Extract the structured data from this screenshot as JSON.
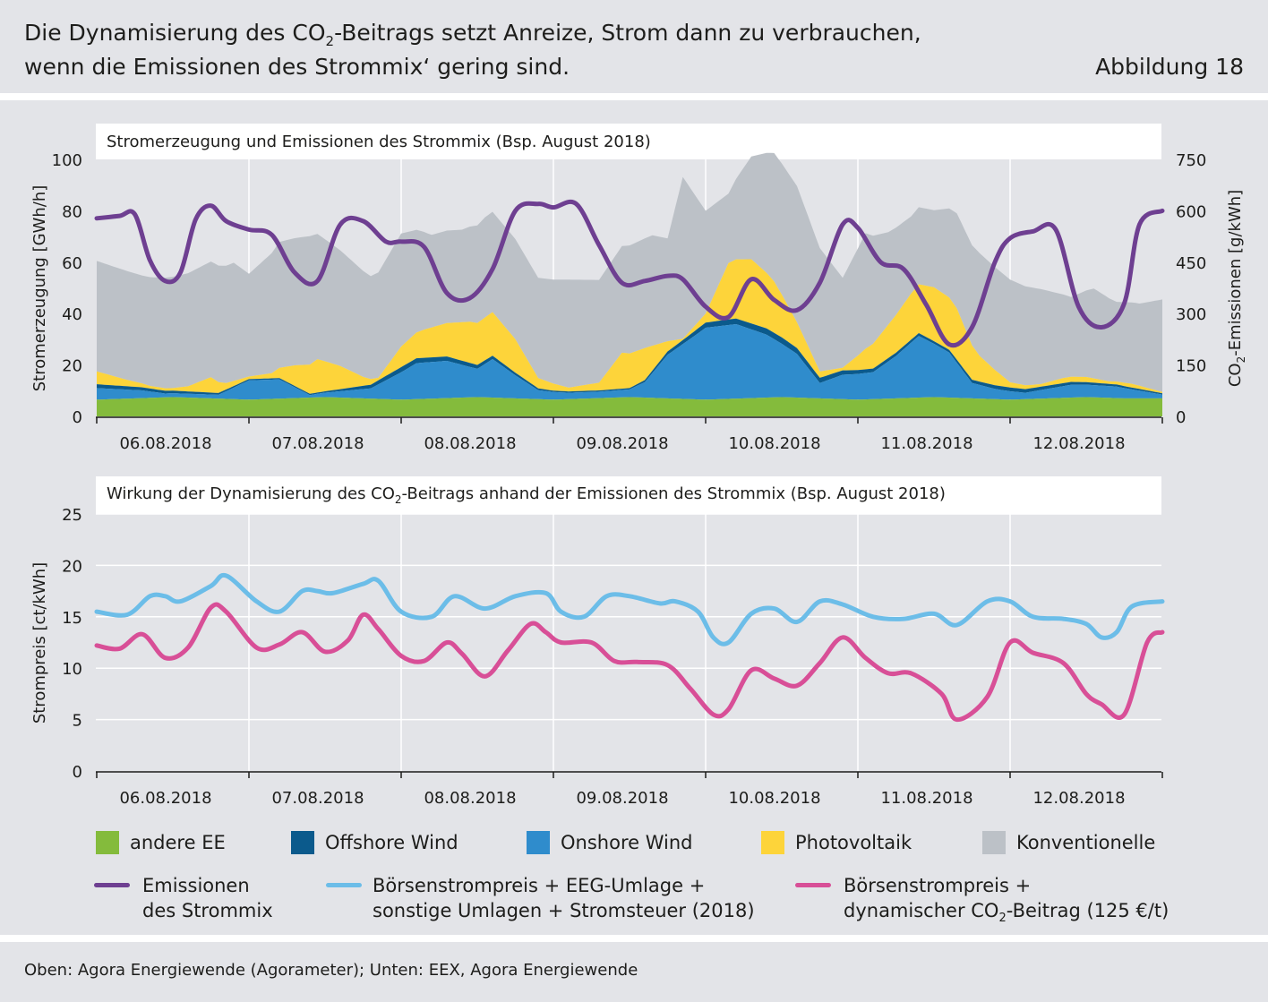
{
  "header": {
    "title_line1_a": "Die Dynamisierung des CO",
    "title_line1_sub": "2",
    "title_line1_b": "-Beitrags setzt Anreize, Strom dann zu verbrauchen,",
    "title_line2": "wenn die Emissionen des Strommix‘ gering sind.",
    "figure_label": "Abbildung 18"
  },
  "source": "Oben: Agora Energiewende (Agorameter); Unten: EEX, Agora Energiewende",
  "colors": {
    "andere_ee": "#84bb3c",
    "offshore": "#0b5a8c",
    "onshore": "#2f8ccc",
    "pv": "#fdd43a",
    "konv": "#bcc1c7",
    "emissions": "#6e3f91",
    "price_total": "#6cbde8",
    "price_dyn": "#d84f97"
  },
  "legend": {
    "andere_ee": "andere EE",
    "offshore": "Offshore Wind",
    "onshore": "Onshore Wind",
    "pv": "Photovoltaik",
    "konv": "Konventionelle",
    "emissions_1": "Emissionen",
    "emissions_2": "des Strommix",
    "price_total_1": "Börsenstrompreis + EEG-Umlage +",
    "price_total_2": "sonstige Umlagen + Stromsteuer (2018)",
    "price_dyn_1": "Börsenstrompreis +",
    "price_dyn_2a": "dynamischer CO",
    "price_dyn_2sub": "2",
    "price_dyn_2b": "-Beitrag (125 €/t)"
  },
  "chart_data": [
    {
      "type": "area",
      "title": "Stromerzeugung und Emissionen des Strommix (Bsp. August 2018)",
      "ylabel": "Stromerzeugung [GWh/h]",
      "y2label_a": "CO",
      "y2label_sub": "2",
      "y2label_b": "-Emissionen [g/kWh]",
      "ylim": [
        0,
        100
      ],
      "y2lim": [
        0,
        750
      ],
      "yticks": [
        0,
        20,
        40,
        60,
        80,
        100
      ],
      "y2ticks": [
        0,
        150,
        300,
        450,
        600,
        750
      ],
      "x_ticks": [
        "06.08.2018",
        "07.08.2018",
        "08.08.2018",
        "09.08.2018",
        "10.08.2018",
        "11.08.2018",
        "12.08.2018"
      ],
      "x_day_range": [
        0,
        7
      ],
      "stack_series": [
        {
          "name": "andere EE",
          "x": [
            0,
            0.25,
            0.5,
            0.75,
            1,
            1.25,
            1.5,
            1.75,
            2,
            2.25,
            2.5,
            2.75,
            3,
            3.25,
            3.5,
            3.75,
            4,
            4.25,
            4.5,
            4.75,
            5,
            5.25,
            5.5,
            5.75,
            6,
            6.25,
            6.5,
            6.75,
            7
          ],
          "values": [
            6.5,
            7,
            7.5,
            7,
            6.5,
            7,
            7.5,
            7,
            6.5,
            7,
            7.5,
            7,
            6.5,
            7,
            7.5,
            7,
            6.5,
            7,
            7.5,
            7,
            6.5,
            7,
            7.5,
            7,
            6.5,
            7,
            7.5,
            7,
            7
          ]
        },
        {
          "name": "Onshore Wind",
          "x": [
            0,
            0.3,
            0.45,
            0.6,
            0.8,
            1.0,
            1.2,
            1.4,
            1.6,
            1.8,
            2.1,
            2.3,
            2.5,
            2.6,
            2.75,
            2.9,
            3.1,
            3.3,
            3.5,
            3.6,
            3.75,
            3.9,
            4.0,
            4.2,
            4.4,
            4.6,
            4.75,
            4.9,
            5.1,
            5.25,
            5.4,
            5.6,
            5.75,
            5.9,
            6.1,
            6.4,
            6.7,
            7.0
          ],
          "values": [
            4.5,
            3.0,
            1.5,
            1.5,
            1.5,
            7.5,
            7.5,
            1.0,
            2.5,
            4.0,
            14.0,
            14.5,
            11.0,
            15.0,
            9.0,
            3.5,
            2.5,
            2.5,
            3.0,
            6.0,
            17.0,
            23.5,
            28.0,
            29.0,
            24.5,
            17.0,
            6.0,
            9.5,
            10.5,
            16.5,
            24.0,
            17.5,
            6.0,
            4.0,
            2.5,
            5.0,
            4.5,
            1.5
          ]
        },
        {
          "name": "Offshore Wind",
          "x": [
            0,
            0.5,
            1.0,
            1.5,
            2.0,
            2.5,
            3.0,
            3.5,
            4.0,
            4.5,
            5.0,
            5.5,
            6.0,
            6.5,
            7.0
          ],
          "values": [
            1.5,
            1.0,
            0.5,
            0.5,
            2.0,
            1.5,
            0.5,
            0.5,
            2.0,
            2.5,
            1.5,
            1.0,
            1.5,
            1.0,
            0.5
          ]
        },
        {
          "name": "Photovoltaik",
          "x": [
            0,
            0.2,
            0.35,
            0.5,
            0.6,
            0.75,
            0.85,
            1.0,
            1.15,
            1.3,
            1.45,
            1.6,
            1.75,
            1.85,
            2.0,
            2.15,
            2.3,
            2.45,
            2.6,
            2.75,
            2.9,
            3.1,
            3.3,
            3.45,
            3.6,
            3.75,
            3.85,
            4.0,
            4.15,
            4.3,
            4.45,
            4.6,
            4.75,
            4.9,
            5.05,
            5.2,
            5.35,
            5.5,
            5.65,
            5.8,
            6.0,
            6.2,
            6.35,
            6.5,
            6.65,
            6.8,
            7.0
          ],
          "values": [
            5.0,
            2.5,
            1.0,
            1.0,
            2.0,
            6.0,
            2.5,
            1.0,
            2.0,
            8.0,
            13.0,
            9.0,
            3.5,
            1.0,
            8.0,
            11.0,
            13.0,
            16.0,
            17.0,
            13.0,
            4.0,
            1.5,
            3.0,
            14.0,
            12.5,
            4.0,
            0.5,
            3.5,
            22.0,
            25.0,
            20.0,
            10.0,
            2.5,
            1.0,
            8.0,
            13.0,
            18.0,
            21.0,
            20.0,
            10.0,
            2.0,
            1.0,
            2.0,
            2.0,
            1.0,
            1.5,
            0.5
          ]
        },
        {
          "name": "Konventionelle",
          "x": [
            0,
            0.3,
            0.6,
            0.9,
            1.0,
            1.2,
            1.4,
            1.6,
            1.8,
            2.0,
            2.2,
            2.4,
            2.55,
            2.75,
            2.9,
            3.1,
            3.3,
            3.5,
            3.65,
            3.75,
            3.85,
            4.0,
            4.15,
            4.3,
            4.45,
            4.6,
            4.75,
            4.9,
            5.05,
            5.2,
            5.35,
            5.5,
            5.65,
            5.8,
            6.0,
            6.2,
            6.4,
            6.55,
            6.7,
            6.85,
            7.0
          ],
          "values": [
            43.0,
            42.0,
            44.0,
            46.0,
            40.0,
            49.0,
            50.0,
            45.0,
            40.0,
            44.0,
            36.0,
            36.0,
            39.0,
            39.0,
            39.0,
            42.0,
            40.0,
            42.0,
            43.0,
            40.0,
            63.0,
            40.0,
            27.0,
            40.0,
            50.0,
            53.0,
            48.0,
            35.0,
            45.0,
            36.0,
            30.0,
            30.0,
            37.0,
            40.0,
            40.0,
            37.0,
            31.0,
            35.0,
            31.0,
            32.0,
            36.0
          ]
        }
      ],
      "line_series": {
        "name": "Emissionen des Strommix",
        "axis": "right",
        "x": [
          0,
          0.15,
          0.25,
          0.35,
          0.45,
          0.55,
          0.65,
          0.75,
          0.85,
          1.0,
          1.15,
          1.3,
          1.45,
          1.6,
          1.75,
          1.9,
          2.0,
          2.15,
          2.3,
          2.45,
          2.6,
          2.75,
          2.9,
          3.0,
          3.15,
          3.3,
          3.45,
          3.6,
          3.75,
          3.85,
          4.0,
          4.15,
          4.3,
          4.45,
          4.6,
          4.75,
          4.9,
          5.0,
          5.15,
          5.3,
          5.45,
          5.6,
          5.75,
          5.9,
          6.0,
          6.15,
          6.3,
          6.45,
          6.6,
          6.75,
          6.85,
          7.0
        ],
        "values": [
          578,
          585,
          590,
          455,
          395,
          420,
          575,
          615,
          570,
          545,
          530,
          420,
          395,
          560,
          570,
          510,
          510,
          495,
          360,
          345,
          430,
          600,
          620,
          610,
          620,
          500,
          390,
          395,
          410,
          400,
          320,
          290,
          400,
          340,
          310,
          390,
          560,
          550,
          450,
          430,
          325,
          210,
          260,
          450,
          520,
          540,
          545,
          320,
          260,
          330,
          560,
          600
        ]
      }
    },
    {
      "type": "line",
      "title_a": "Wirkung der Dynamisierung des CO",
      "title_sub": "2",
      "title_b": "-Beitrags anhand der Emissionen des Strommix (Bsp. August 2018)",
      "ylabel": "Strompreis [ct/kWh]",
      "ylim": [
        0,
        25
      ],
      "yticks": [
        0,
        5,
        10,
        15,
        20,
        25
      ],
      "x_ticks": [
        "06.08.2018",
        "07.08.2018",
        "08.08.2018",
        "09.08.2018",
        "10.08.2018",
        "11.08.2018",
        "12.08.2018"
      ],
      "series": [
        {
          "name": "Börsenstrompreis + EEG-Umlage + sonstige Umlagen + Stromsteuer (2018)",
          "x": [
            0,
            0.2,
            0.35,
            0.45,
            0.55,
            0.75,
            0.85,
            1.05,
            1.2,
            1.35,
            1.45,
            1.55,
            1.75,
            1.85,
            2.0,
            2.2,
            2.35,
            2.55,
            2.75,
            2.95,
            3.05,
            3.2,
            3.35,
            3.5,
            3.7,
            3.8,
            3.95,
            4.05,
            4.15,
            4.3,
            4.45,
            4.6,
            4.75,
            4.9,
            5.1,
            5.3,
            5.5,
            5.65,
            5.85,
            6.0,
            6.15,
            6.35,
            6.5,
            6.6,
            6.7,
            6.8,
            7.0
          ],
          "values": [
            15.5,
            15.2,
            17.0,
            17.0,
            16.5,
            18.0,
            19.0,
            16.5,
            15.5,
            17.5,
            17.5,
            17.3,
            18.2,
            18.5,
            15.5,
            15.0,
            17.0,
            15.8,
            17.0,
            17.3,
            15.5,
            15.0,
            17.0,
            17.0,
            16.3,
            16.5,
            15.5,
            13.0,
            12.5,
            15.3,
            15.8,
            14.5,
            16.5,
            16.2,
            15.0,
            14.8,
            15.3,
            14.2,
            16.5,
            16.5,
            15.0,
            14.8,
            14.3,
            13.0,
            13.5,
            16.0,
            16.5
          ]
        },
        {
          "name": "Börsenstrompreis + dynamischer CO2-Beitrag (125 €/t)",
          "x": [
            0,
            0.15,
            0.3,
            0.45,
            0.6,
            0.75,
            0.85,
            1.05,
            1.2,
            1.35,
            1.5,
            1.65,
            1.75,
            1.85,
            2.0,
            2.15,
            2.3,
            2.4,
            2.55,
            2.7,
            2.85,
            2.95,
            3.05,
            3.25,
            3.4,
            3.55,
            3.75,
            3.9,
            4.05,
            4.15,
            4.3,
            4.45,
            4.6,
            4.75,
            4.9,
            5.05,
            5.2,
            5.35,
            5.55,
            5.65,
            5.85,
            6.0,
            6.15,
            6.35,
            6.5,
            6.6,
            6.75,
            6.9,
            7.0
          ],
          "values": [
            12.2,
            11.9,
            13.3,
            11.0,
            12.0,
            15.9,
            15.5,
            12.0,
            12.3,
            13.5,
            11.6,
            12.7,
            15.2,
            13.8,
            11.2,
            10.7,
            12.5,
            11.4,
            9.2,
            11.7,
            14.3,
            13.5,
            12.5,
            12.5,
            10.7,
            10.6,
            10.3,
            8.0,
            5.5,
            6.0,
            9.8,
            9.0,
            8.3,
            10.5,
            13.0,
            11.0,
            9.5,
            9.5,
            7.5,
            5.0,
            7.2,
            12.5,
            11.5,
            10.5,
            7.5,
            6.5,
            5.5,
            12.5,
            13.5
          ]
        }
      ]
    }
  ]
}
